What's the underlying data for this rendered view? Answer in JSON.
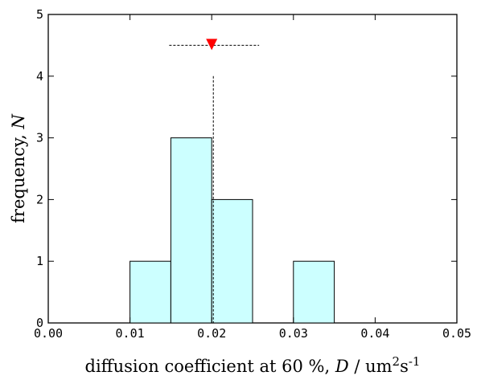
{
  "chart_data": {
    "type": "bar",
    "bins": [
      {
        "start": 0.01,
        "end": 0.015,
        "count": 1
      },
      {
        "start": 0.015,
        "end": 0.02,
        "count": 3
      },
      {
        "start": 0.02,
        "end": 0.025,
        "count": 2
      },
      {
        "start": 0.03,
        "end": 0.035,
        "count": 1
      }
    ],
    "xlim": [
      0.0,
      0.05
    ],
    "ylim": [
      0,
      5
    ],
    "x_ticks": [
      "0.00",
      "0.01",
      "0.02",
      "0.03",
      "0.04",
      "0.05"
    ],
    "x_tick_values": [
      0.0,
      0.01,
      0.02,
      0.03,
      0.04,
      0.05
    ],
    "y_ticks": [
      "0",
      "1",
      "2",
      "3",
      "4",
      "5"
    ],
    "y_tick_values": [
      0,
      1,
      2,
      3,
      4,
      5
    ],
    "xlabel": "diffusion coefficient at 60 %, D / um²s⁻¹",
    "ylabel": "frequency, N",
    "mean_marker": {
      "x": 0.02,
      "y": 4.5,
      "color": "#ff0000",
      "symbol": "triangle-down"
    },
    "error_bar": {
      "low": 0.0148,
      "high": 0.0258,
      "y": 4.5
    },
    "mean_line": {
      "x": 0.0202,
      "y_top": 4.0
    },
    "bar_fill": "#ccffff",
    "bar_stroke": "#000000",
    "grid": false
  }
}
